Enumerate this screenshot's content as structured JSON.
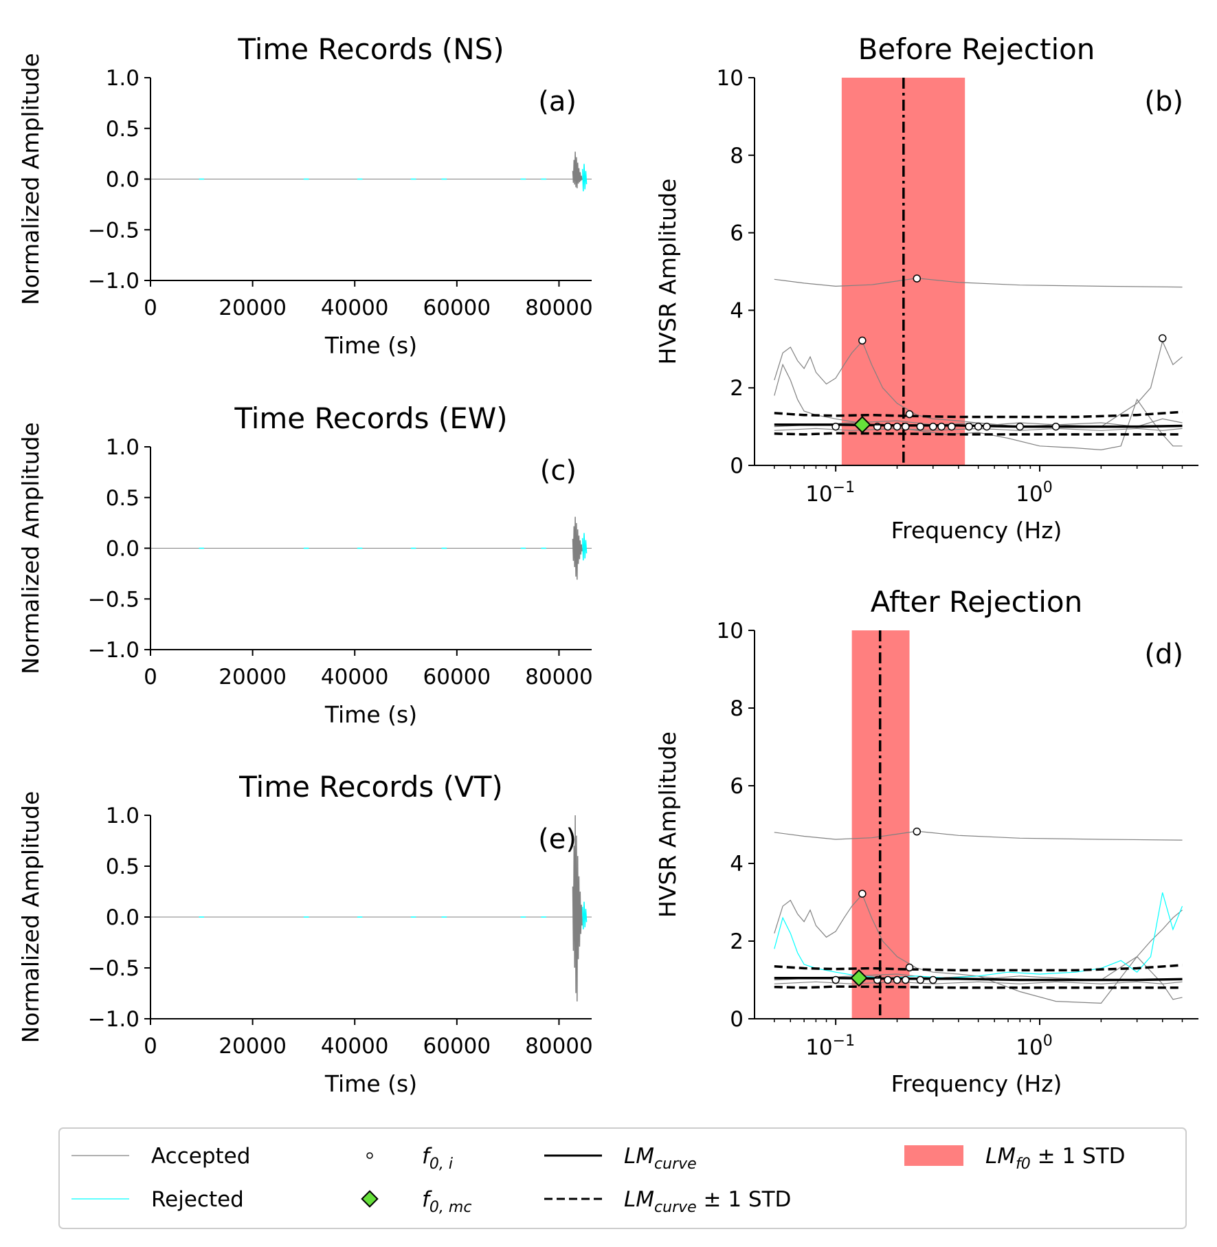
{
  "colors": {
    "accepted": "#808080",
    "rejected": "#00ffff",
    "band": "#ff7f7f",
    "f0mc": "#66e03a",
    "black": "#000000"
  },
  "chart_data": [
    {
      "id": "a",
      "type": "line",
      "title": "Time Records (NS)",
      "panel_label": "(a)",
      "xlabel": "Time (s)",
      "ylabel": "Normalized Amplitude",
      "xlim": [
        0,
        86400
      ],
      "ylim": [
        -1.0,
        1.0
      ],
      "xticks": [
        0,
        20000,
        40000,
        60000,
        80000
      ],
      "xtick_labels": [
        "0",
        "20000",
        "40000",
        "60000",
        "80000"
      ],
      "yticks": [
        1.0,
        0.5,
        0.0,
        -0.5,
        -1.0
      ],
      "ytick_labels": [
        "1.0",
        "0.5",
        "0.0",
        "−0.5",
        "−1.0"
      ],
      "burst_peak": 0.27,
      "burst_trough": -0.09,
      "rejected_marks": [
        10000,
        30500,
        41000,
        51500,
        57500,
        73000,
        77000
      ]
    },
    {
      "id": "c",
      "type": "line",
      "title": "Time Records (EW)",
      "panel_label": "(c)",
      "xlabel": "Time (s)",
      "ylabel": "Normalized Amplitude",
      "xlim": [
        0,
        86400
      ],
      "ylim": [
        -1.0,
        1.0
      ],
      "xticks": [
        0,
        20000,
        40000,
        60000,
        80000
      ],
      "xtick_labels": [
        "0",
        "20000",
        "40000",
        "60000",
        "80000"
      ],
      "yticks": [
        1.0,
        0.5,
        0.0,
        -0.5,
        -1.0
      ],
      "ytick_labels": [
        "1.0",
        "0.5",
        "0.0",
        "−0.5",
        "−1.0"
      ],
      "burst_peak": 0.31,
      "burst_trough": -0.31,
      "rejected_marks": [
        10000,
        30500,
        41000,
        51500,
        57500,
        73000,
        77000
      ]
    },
    {
      "id": "e",
      "type": "line",
      "title": "Time Records (VT)",
      "panel_label": "(e)",
      "xlabel": "Time (s)",
      "ylabel": "Normalized Amplitude",
      "xlim": [
        0,
        86400
      ],
      "ylim": [
        -1.0,
        1.0
      ],
      "xticks": [
        0,
        20000,
        40000,
        60000,
        80000
      ],
      "xtick_labels": [
        "0",
        "20000",
        "40000",
        "60000",
        "80000"
      ],
      "yticks": [
        1.0,
        0.5,
        0.0,
        -0.5,
        -1.0
      ],
      "ytick_labels": [
        "1.0",
        "0.5",
        "0.0",
        "−0.5",
        "−1.0"
      ],
      "burst_peak": 1.0,
      "burst_trough": -0.83,
      "rejected_marks": [
        10000,
        30500,
        41000,
        51500,
        57500,
        73000,
        77000
      ]
    },
    {
      "id": "b",
      "type": "line",
      "title": "Before Rejection",
      "panel_label": "(b)",
      "xlabel": "Frequency (Hz)",
      "ylabel": "HVSR Amplitude",
      "xscale": "log",
      "xlim": [
        0.04,
        6.0
      ],
      "ylim": [
        0,
        10
      ],
      "xticks": [
        0.1,
        1.0
      ],
      "xtick_labels": [
        "10",
        "10"
      ],
      "xtick_exponents": [
        "−1",
        "0"
      ],
      "yticks": [
        0,
        2,
        4,
        6,
        8,
        10
      ],
      "ytick_labels": [
        "0",
        "2",
        "4",
        "6",
        "8",
        "10"
      ],
      "band": [
        0.107,
        0.43
      ],
      "f0_line": 0.215,
      "f0_mc": {
        "x": 0.135,
        "y": 1.05
      },
      "accepted_curves": [
        [
          [
            0.05,
            4.8
          ],
          [
            0.07,
            4.7
          ],
          [
            0.1,
            4.62
          ],
          [
            0.15,
            4.66
          ],
          [
            0.25,
            4.83
          ],
          [
            0.4,
            4.72
          ],
          [
            0.8,
            4.65
          ],
          [
            2,
            4.62
          ],
          [
            5,
            4.6
          ]
        ],
        [
          [
            0.05,
            2.2
          ],
          [
            0.055,
            2.9
          ],
          [
            0.06,
            3.05
          ],
          [
            0.065,
            2.7
          ],
          [
            0.07,
            2.5
          ],
          [
            0.075,
            2.8
          ],
          [
            0.08,
            2.4
          ],
          [
            0.09,
            2.1
          ],
          [
            0.1,
            2.25
          ],
          [
            0.11,
            2.6
          ],
          [
            0.12,
            2.9
          ],
          [
            0.135,
            3.2
          ],
          [
            0.15,
            2.6
          ],
          [
            0.17,
            2.0
          ],
          [
            0.2,
            1.6
          ],
          [
            0.25,
            1.3
          ],
          [
            0.3,
            1.2
          ],
          [
            0.4,
            1.15
          ],
          [
            0.6,
            1.05
          ],
          [
            0.8,
            1.1
          ],
          [
            1.2,
            1.05
          ],
          [
            2,
            1.0
          ],
          [
            3,
            1.6
          ],
          [
            3.5,
            2.0
          ],
          [
            4,
            3.2
          ],
          [
            4.5,
            2.6
          ],
          [
            5,
            2.8
          ]
        ],
        [
          [
            0.05,
            1.8
          ],
          [
            0.055,
            2.6
          ],
          [
            0.06,
            2.2
          ],
          [
            0.065,
            1.7
          ],
          [
            0.07,
            1.4
          ],
          [
            0.08,
            1.3
          ],
          [
            0.1,
            1.2
          ],
          [
            0.13,
            1.1
          ],
          [
            0.18,
            1.0
          ],
          [
            0.25,
            0.9
          ],
          [
            0.35,
            0.8
          ],
          [
            0.5,
            0.85
          ],
          [
            0.7,
            0.7
          ],
          [
            1,
            0.5
          ],
          [
            1.5,
            0.45
          ],
          [
            2,
            0.4
          ],
          [
            2.5,
            0.5
          ],
          [
            3,
            1.7
          ],
          [
            3.5,
            1.2
          ],
          [
            4,
            0.8
          ],
          [
            4.5,
            0.5
          ],
          [
            5,
            0.5
          ]
        ],
        [
          [
            0.05,
            1.0
          ],
          [
            0.08,
            1.05
          ],
          [
            0.12,
            1.1
          ],
          [
            0.2,
            1.15
          ],
          [
            0.3,
            1.05
          ],
          [
            0.5,
            1.1
          ],
          [
            0.8,
            1.0
          ],
          [
            1.2,
            1.05
          ],
          [
            2,
            1.1
          ],
          [
            3,
            1.0
          ],
          [
            4,
            1.2
          ],
          [
            5,
            1.1
          ]
        ],
        [
          [
            0.05,
            0.9
          ],
          [
            0.08,
            0.95
          ],
          [
            0.12,
            0.9
          ],
          [
            0.2,
            0.95
          ],
          [
            0.3,
            0.9
          ],
          [
            0.5,
            0.95
          ],
          [
            0.8,
            0.9
          ],
          [
            1.2,
            0.95
          ],
          [
            2,
            0.9
          ],
          [
            3,
            0.95
          ],
          [
            4,
            0.9
          ],
          [
            5,
            0.95
          ]
        ]
      ],
      "rejected_curves": [],
      "lm_curve": [
        [
          0.05,
          1.05
        ],
        [
          0.1,
          1.05
        ],
        [
          0.2,
          1.03
        ],
        [
          0.4,
          1.03
        ],
        [
          0.8,
          1.0
        ],
        [
          1.5,
          1.0
        ],
        [
          3,
          1.0
        ],
        [
          5,
          1.02
        ]
      ],
      "lm_upper": [
        [
          0.05,
          1.35
        ],
        [
          0.07,
          1.3
        ],
        [
          0.1,
          1.28
        ],
        [
          0.15,
          1.3
        ],
        [
          0.2,
          1.28
        ],
        [
          0.4,
          1.25
        ],
        [
          0.8,
          1.25
        ],
        [
          1.5,
          1.25
        ],
        [
          3,
          1.3
        ],
        [
          5,
          1.38
        ]
      ],
      "lm_lower": [
        [
          0.05,
          0.82
        ],
        [
          0.07,
          0.8
        ],
        [
          0.1,
          0.83
        ],
        [
          0.2,
          0.82
        ],
        [
          0.4,
          0.8
        ],
        [
          0.8,
          0.8
        ],
        [
          1.5,
          0.8
        ],
        [
          3,
          0.8
        ],
        [
          5,
          0.8
        ]
      ],
      "f0_i": [
        [
          0.135,
          3.22
        ],
        [
          0.25,
          4.82
        ],
        [
          4.0,
          3.28
        ],
        [
          0.23,
          1.32
        ],
        [
          0.1,
          1.0
        ],
        [
          0.16,
          1.0
        ],
        [
          0.18,
          1.0
        ],
        [
          0.2,
          1.0
        ],
        [
          0.22,
          1.0
        ],
        [
          0.26,
          1.0
        ],
        [
          0.3,
          1.0
        ],
        [
          0.33,
          1.0
        ],
        [
          0.37,
          1.0
        ],
        [
          0.45,
          1.0
        ],
        [
          0.5,
          1.0
        ],
        [
          0.55,
          1.0
        ],
        [
          0.8,
          1.0
        ],
        [
          1.2,
          1.0
        ]
      ]
    },
    {
      "id": "d",
      "type": "line",
      "title": "After Rejection",
      "panel_label": "(d)",
      "xlabel": "Frequency (Hz)",
      "ylabel": "HVSR Amplitude",
      "xscale": "log",
      "xlim": [
        0.04,
        6.0
      ],
      "ylim": [
        0,
        10
      ],
      "xticks": [
        0.1,
        1.0
      ],
      "xtick_labels": [
        "10",
        "10"
      ],
      "xtick_exponents": [
        "−1",
        "0"
      ],
      "yticks": [
        0,
        2,
        4,
        6,
        8,
        10
      ],
      "ytick_labels": [
        "0",
        "2",
        "4",
        "6",
        "8",
        "10"
      ],
      "band": [
        0.12,
        0.23
      ],
      "f0_line": 0.165,
      "f0_mc": {
        "x": 0.13,
        "y": 1.05
      },
      "accepted_curves": [
        [
          [
            0.05,
            4.8
          ],
          [
            0.07,
            4.7
          ],
          [
            0.1,
            4.62
          ],
          [
            0.15,
            4.66
          ],
          [
            0.25,
            4.83
          ],
          [
            0.4,
            4.72
          ],
          [
            0.8,
            4.65
          ],
          [
            2,
            4.62
          ],
          [
            5,
            4.6
          ]
        ],
        [
          [
            0.05,
            2.2
          ],
          [
            0.055,
            2.9
          ],
          [
            0.06,
            3.05
          ],
          [
            0.065,
            2.7
          ],
          [
            0.07,
            2.5
          ],
          [
            0.075,
            2.8
          ],
          [
            0.08,
            2.4
          ],
          [
            0.09,
            2.1
          ],
          [
            0.1,
            2.25
          ],
          [
            0.11,
            2.6
          ],
          [
            0.12,
            2.9
          ],
          [
            0.135,
            3.2
          ],
          [
            0.15,
            2.6
          ],
          [
            0.17,
            2.0
          ],
          [
            0.2,
            1.6
          ],
          [
            0.25,
            1.3
          ],
          [
            0.3,
            1.2
          ],
          [
            0.4,
            1.15
          ],
          [
            0.6,
            1.05
          ],
          [
            0.8,
            1.1
          ],
          [
            1.2,
            1.05
          ],
          [
            2,
            1.0
          ],
          [
            3,
            1.6
          ],
          [
            3.5,
            2.0
          ],
          [
            4,
            2.3
          ],
          [
            4.5,
            2.6
          ],
          [
            5,
            2.8
          ]
        ],
        [
          [
            0.05,
            1.0
          ],
          [
            0.08,
            1.05
          ],
          [
            0.12,
            1.1
          ],
          [
            0.2,
            1.15
          ],
          [
            0.3,
            1.05
          ],
          [
            0.5,
            1.1
          ],
          [
            0.8,
            0.7
          ],
          [
            1.2,
            0.45
          ],
          [
            2,
            0.4
          ],
          [
            3,
            1.6
          ],
          [
            4,
            0.9
          ],
          [
            4.5,
            0.5
          ],
          [
            5,
            0.55
          ]
        ],
        [
          [
            0.05,
            0.9
          ],
          [
            0.08,
            0.95
          ],
          [
            0.12,
            0.9
          ],
          [
            0.2,
            0.95
          ],
          [
            0.3,
            0.9
          ],
          [
            0.5,
            0.95
          ],
          [
            0.8,
            0.9
          ],
          [
            1.2,
            0.95
          ],
          [
            2,
            0.9
          ],
          [
            3,
            0.95
          ],
          [
            4,
            0.9
          ],
          [
            5,
            0.95
          ]
        ]
      ],
      "rejected_curves": [
        [
          [
            0.05,
            1.8
          ],
          [
            0.055,
            2.6
          ],
          [
            0.06,
            2.2
          ],
          [
            0.065,
            1.7
          ],
          [
            0.07,
            1.4
          ],
          [
            0.08,
            1.3
          ],
          [
            0.1,
            1.2
          ],
          [
            0.13,
            1.1
          ],
          [
            0.18,
            1.05
          ],
          [
            0.25,
            1.1
          ],
          [
            0.35,
            1.05
          ],
          [
            0.5,
            1.1
          ],
          [
            0.7,
            1.2
          ],
          [
            1,
            1.15
          ],
          [
            1.5,
            1.2
          ],
          [
            2,
            1.3
          ],
          [
            2.5,
            1.5
          ],
          [
            3,
            1.2
          ],
          [
            3.5,
            1.6
          ],
          [
            4,
            3.25
          ],
          [
            4.5,
            2.3
          ],
          [
            5,
            2.9
          ]
        ]
      ],
      "lm_curve": [
        [
          0.05,
          1.05
        ],
        [
          0.1,
          1.05
        ],
        [
          0.2,
          1.03
        ],
        [
          0.4,
          1.03
        ],
        [
          0.8,
          1.0
        ],
        [
          1.5,
          1.0
        ],
        [
          3,
          1.0
        ],
        [
          5,
          1.02
        ]
      ],
      "lm_upper": [
        [
          0.05,
          1.35
        ],
        [
          0.07,
          1.3
        ],
        [
          0.1,
          1.28
        ],
        [
          0.15,
          1.3
        ],
        [
          0.2,
          1.28
        ],
        [
          0.4,
          1.25
        ],
        [
          0.8,
          1.25
        ],
        [
          1.5,
          1.25
        ],
        [
          3,
          1.3
        ],
        [
          5,
          1.38
        ]
      ],
      "lm_lower": [
        [
          0.05,
          0.82
        ],
        [
          0.07,
          0.8
        ],
        [
          0.1,
          0.83
        ],
        [
          0.2,
          0.82
        ],
        [
          0.4,
          0.8
        ],
        [
          0.8,
          0.8
        ],
        [
          1.5,
          0.8
        ],
        [
          3,
          0.8
        ],
        [
          5,
          0.8
        ]
      ],
      "f0_i": [
        [
          0.135,
          3.22
        ],
        [
          0.25,
          4.82
        ],
        [
          0.23,
          1.32
        ],
        [
          0.1,
          1.0
        ],
        [
          0.16,
          1.0
        ],
        [
          0.18,
          1.0
        ],
        [
          0.2,
          1.0
        ],
        [
          0.22,
          1.0
        ],
        [
          0.26,
          1.0
        ],
        [
          0.3,
          1.0
        ]
      ]
    }
  ],
  "legend": {
    "accepted": "Accepted",
    "rejected": "Rejected",
    "f0i_main": "f",
    "f0i_sub": "0, i",
    "f0mc_main": "f",
    "f0mc_sub": "0, mc",
    "lmcurve_main": "LM",
    "lmcurve_sub": "curve",
    "lmstd_main": "LM",
    "lmstd_sub": "curve",
    "lmstd_suffix": " ± 1 STD",
    "lmf0_main": "LM",
    "lmf0_sub": "f0",
    "lmf0_suffix": " ± 1 STD"
  }
}
